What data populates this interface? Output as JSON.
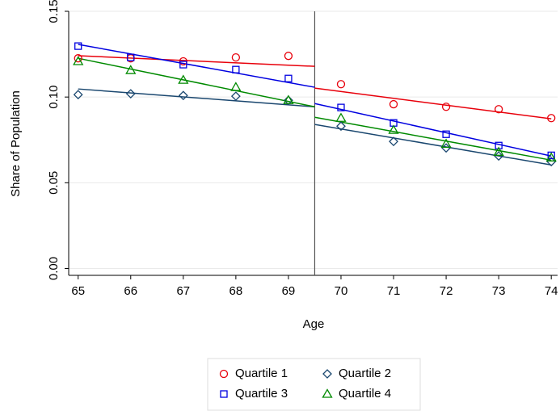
{
  "chart_data": {
    "type": "scatter",
    "x_label": "Age",
    "y_label": "Share of Population",
    "x": [
      65,
      66,
      67,
      68,
      69,
      70,
      71,
      72,
      73,
      74
    ],
    "xlim": [
      64.82,
      74.12
    ],
    "xticks": [
      65,
      66,
      67,
      68,
      69,
      70,
      71,
      72,
      73,
      74
    ],
    "ylim": [
      -0.004,
      0.15
    ],
    "yticks": [
      {
        "value": 0,
        "label": "0.00"
      },
      {
        "value": 0.05,
        "label": "0.05"
      },
      {
        "value": 0.1,
        "label": "0.10"
      },
      {
        "value": 0.15,
        "label": "0.15"
      }
    ],
    "grid": true,
    "cutoff": 69.5,
    "legend": "bottom",
    "series": [
      {
        "name": "Quartile 1",
        "color": "#e8000b",
        "marker": "circle",
        "values": [
          0.1226,
          0.1226,
          0.1208,
          0.1231,
          0.124,
          0.1075,
          0.0958,
          0.0943,
          0.0929,
          0.0877
        ],
        "fit_left": [
          0.1241,
          0.1179
        ],
        "fit_right": [
          0.1052,
          0.0873
        ]
      },
      {
        "name": "Quartile 2",
        "color": "#1a476f",
        "marker": "diamond",
        "values": [
          0.1014,
          0.1019,
          0.1009,
          0.1005,
          0.0981,
          0.083,
          0.0741,
          0.0703,
          0.0656,
          0.0623
        ],
        "fit_left": [
          0.1047,
          0.0943
        ],
        "fit_right": [
          0.084,
          0.0604
        ]
      },
      {
        "name": "Quartile 3",
        "color": "#0000e0",
        "marker": "square",
        "values": [
          0.1297,
          0.1231,
          0.1189,
          0.116,
          0.1108,
          0.0939,
          0.0849,
          0.0783,
          0.0717,
          0.066
        ],
        "fit_left": [
          0.1307,
          0.1057
        ],
        "fit_right": [
          0.0962,
          0.0656
        ]
      },
      {
        "name": "Quartile 4",
        "color": "#008a00",
        "marker": "triangle",
        "values": [
          0.1208,
          0.1156,
          0.1099,
          0.1057,
          0.0981,
          0.0877,
          0.0807,
          0.0726,
          0.0679,
          0.0646
        ],
        "fit_left": [
          0.1226,
          0.0943
        ],
        "fit_right": [
          0.0882,
          0.0632
        ]
      }
    ]
  }
}
